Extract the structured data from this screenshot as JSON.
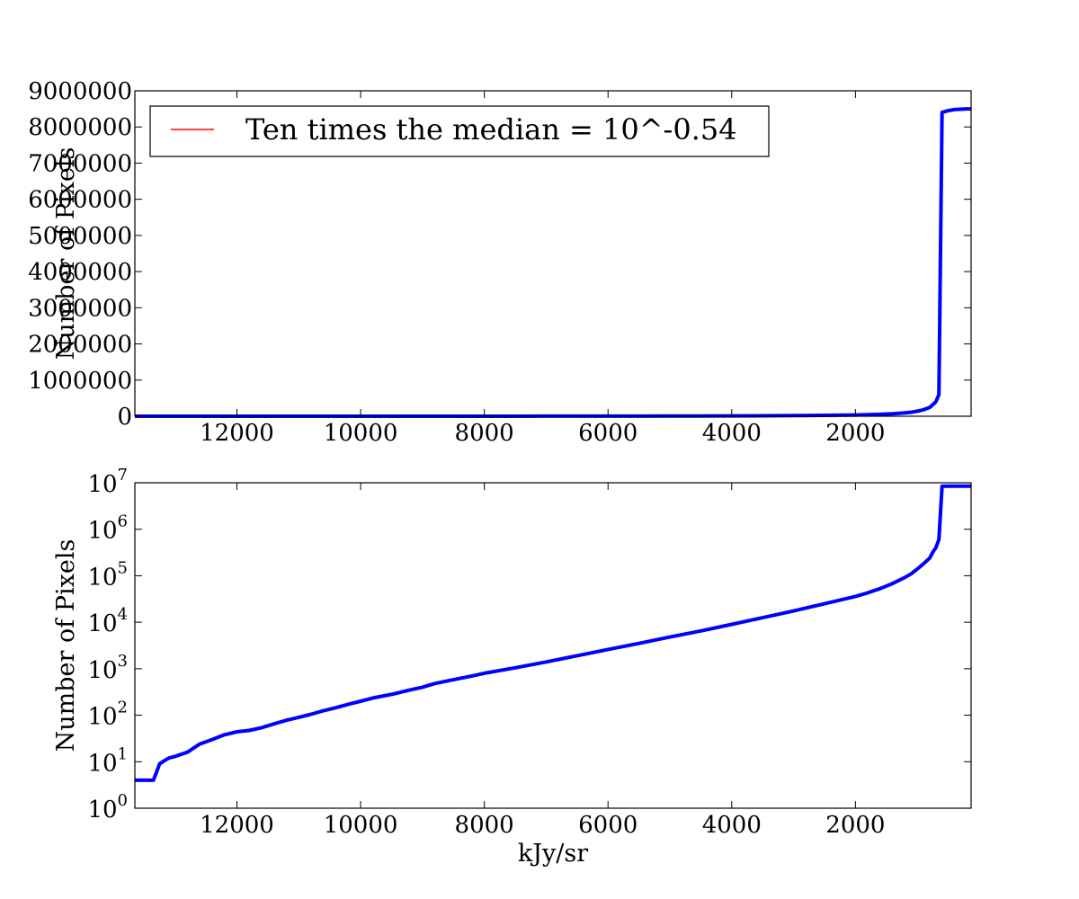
{
  "chart_data": [
    {
      "type": "line",
      "scale_y": "linear",
      "xlabel": "",
      "ylabel": "Number of Pixels",
      "xlim": [
        13650,
        130
      ],
      "ylim": [
        0,
        9000000
      ],
      "x_ticks": [
        12000,
        10000,
        8000,
        6000,
        4000,
        2000
      ],
      "x_tick_labels": [
        "12000",
        "10000",
        "8000",
        "6000",
        "4000",
        "2000"
      ],
      "y_ticks": [
        0,
        1000000,
        2000000,
        3000000,
        4000000,
        5000000,
        6000000,
        7000000,
        8000000,
        9000000
      ],
      "y_tick_labels": [
        "0",
        "1000000",
        "2000000",
        "3000000",
        "4000000",
        "5000000",
        "6000000",
        "7000000",
        "8000000",
        "9000000"
      ],
      "legend": {
        "position": "top-left",
        "entries": [
          {
            "label": "Ten times the median = 10^-0.54",
            "color": "#ff0000"
          }
        ]
      },
      "series": [
        {
          "color": "#0000ff",
          "x": [
            13650,
            13350,
            13300,
            13250,
            13200,
            13100,
            13000,
            12800,
            12600,
            12400,
            12200,
            12000,
            11800,
            11600,
            11400,
            11200,
            11000,
            10800,
            10600,
            10400,
            10200,
            10000,
            9800,
            9500,
            9200,
            9000,
            8800,
            8500,
            8200,
            8000,
            7500,
            7000,
            6500,
            6000,
            5500,
            5000,
            4500,
            4000,
            3500,
            3000,
            2500,
            2000,
            1800,
            1600,
            1400,
            1200,
            1100,
            1000,
            900,
            800,
            750,
            700,
            650,
            600,
            500,
            400,
            300,
            200,
            130
          ],
          "values": [
            4,
            4,
            6,
            9,
            10,
            12,
            13,
            16,
            24,
            30,
            38,
            44,
            47,
            54,
            65,
            78,
            90,
            105,
            125,
            145,
            172,
            200,
            235,
            280,
            350,
            400,
            480,
            580,
            700,
            800,
            1050,
            1400,
            1900,
            2600,
            3500,
            4800,
            6500,
            9000,
            12500,
            17500,
            25000,
            36000,
            43000,
            53000,
            68000,
            92000,
            110000,
            140000,
            180000,
            240000,
            320000,
            400000,
            600000,
            8400000,
            8450000,
            8480000,
            8490000,
            8500000,
            8500000
          ]
        }
      ]
    },
    {
      "type": "line",
      "scale_y": "log",
      "xlabel": "kJy/sr",
      "ylabel": "Number of Pixels",
      "xlim": [
        13650,
        130
      ],
      "ylim": [
        1,
        10000000
      ],
      "x_ticks": [
        12000,
        10000,
        8000,
        6000,
        4000,
        2000
      ],
      "x_tick_labels": [
        "12000",
        "10000",
        "8000",
        "6000",
        "4000",
        "2000"
      ],
      "y_ticks": [
        1,
        10,
        100,
        1000,
        10000,
        100000,
        1000000,
        10000000
      ],
      "y_tick_labels": [
        {
          "base": "10",
          "exp": "0"
        },
        {
          "base": "10",
          "exp": "1"
        },
        {
          "base": "10",
          "exp": "2"
        },
        {
          "base": "10",
          "exp": "3"
        },
        {
          "base": "10",
          "exp": "4"
        },
        {
          "base": "10",
          "exp": "5"
        },
        {
          "base": "10",
          "exp": "6"
        },
        {
          "base": "10",
          "exp": "7"
        }
      ],
      "series": [
        {
          "color": "#0000ff",
          "x": [
            13650,
            13350,
            13300,
            13250,
            13200,
            13100,
            13000,
            12800,
            12600,
            12400,
            12200,
            12000,
            11800,
            11600,
            11400,
            11200,
            11000,
            10800,
            10600,
            10400,
            10200,
            10000,
            9800,
            9500,
            9200,
            9000,
            8800,
            8500,
            8200,
            8000,
            7500,
            7000,
            6500,
            6000,
            5500,
            5000,
            4500,
            4000,
            3500,
            3000,
            2500,
            2000,
            1800,
            1600,
            1400,
            1200,
            1100,
            1000,
            900,
            800,
            750,
            700,
            650,
            600,
            500,
            400,
            300,
            200,
            130
          ],
          "values": [
            4,
            4,
            6,
            9,
            10,
            12,
            13,
            16,
            24,
            30,
            38,
            44,
            47,
            54,
            65,
            78,
            90,
            105,
            125,
            145,
            172,
            200,
            235,
            280,
            350,
            400,
            480,
            580,
            700,
            800,
            1050,
            1400,
            1900,
            2600,
            3500,
            4800,
            6500,
            9000,
            12500,
            17500,
            25000,
            36000,
            43000,
            53000,
            68000,
            92000,
            110000,
            140000,
            180000,
            240000,
            320000,
            400000,
            600000,
            8400000,
            8450000,
            8480000,
            8490000,
            8500000,
            8500000
          ]
        }
      ]
    }
  ]
}
